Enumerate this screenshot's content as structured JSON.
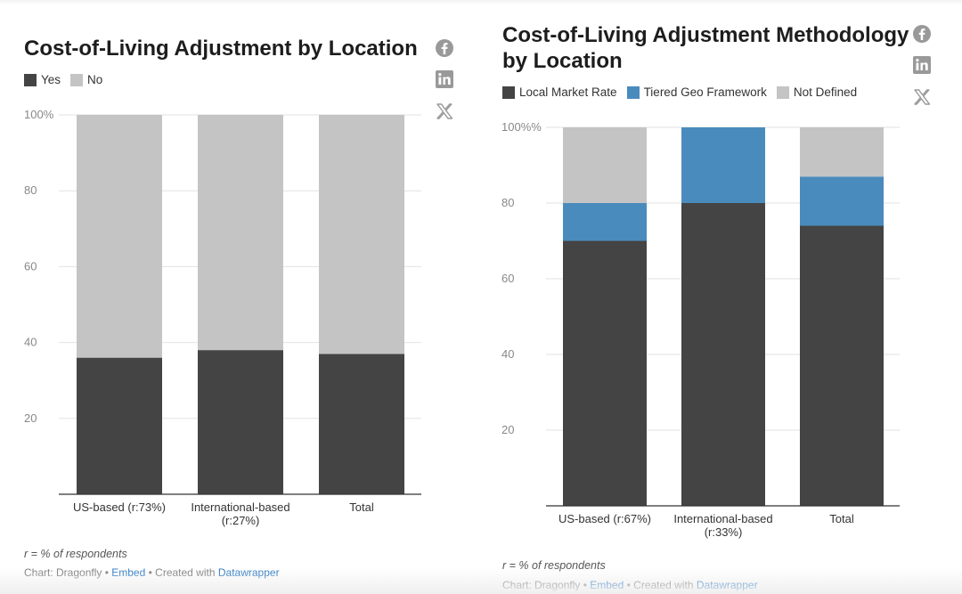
{
  "colors": {
    "dark": "#444444",
    "light": "#c4c4c4",
    "blue": "#4a8bbd",
    "social_icon": "#999999"
  },
  "social_icons": [
    "facebook-icon",
    "linkedin-icon",
    "x-icon"
  ],
  "left": {
    "title": "Cost-of-Living Adjustment by Location",
    "legend": [
      {
        "label": "Yes",
        "color": "#444444"
      },
      {
        "label": "No",
        "color": "#c4c4c4"
      }
    ],
    "note": "r = % of respondents",
    "credit": {
      "prefix": "Chart: Dragonfly •",
      "embed": "Embed",
      "middle": "• Created with",
      "tool": "Datawrapper"
    }
  },
  "right": {
    "title_line1": "Cost-of-Living Adjustment Methodology",
    "title_line2": "by Location",
    "legend": [
      {
        "label": "Local Market Rate",
        "color": "#444444"
      },
      {
        "label": "Tiered Geo Framework",
        "color": "#4a8bbd"
      },
      {
        "label": "Not Defined",
        "color": "#c4c4c4"
      }
    ],
    "note": "r = % of respondents",
    "credit": {
      "prefix": "Chart: Dragonfly •",
      "embed": "Embed",
      "middle": "• Created with",
      "tool": "Datawrapper"
    }
  },
  "chart_data": [
    {
      "type": "bar",
      "stacked": true,
      "title": "Cost-of-Living Adjustment by Location",
      "categories": [
        [
          "US-based (r:73%)"
        ],
        [
          "International-based",
          "(r:27%)"
        ],
        [
          "Total"
        ]
      ],
      "series": [
        {
          "name": "Yes",
          "values": [
            36,
            38,
            37
          ]
        },
        {
          "name": "No",
          "values": [
            64,
            62,
            63
          ]
        }
      ],
      "y_ticks": [
        "20",
        "40",
        "60",
        "80",
        "100%"
      ],
      "ylim": [
        0,
        100
      ],
      "legend_position": "top-left",
      "grid": true
    },
    {
      "type": "bar",
      "stacked": true,
      "title": "Cost-of-Living Adjustment Methodology by Location",
      "categories": [
        [
          "US-based (r:67%)"
        ],
        [
          "International-based",
          "(r:33%)"
        ],
        [
          "Total"
        ]
      ],
      "series": [
        {
          "name": "Local Market Rate",
          "values": [
            70,
            80,
            74
          ]
        },
        {
          "name": "Tiered Geo Framework",
          "values": [
            10,
            20,
            13
          ]
        },
        {
          "name": "Not Defined",
          "values": [
            20,
            0,
            13
          ]
        }
      ],
      "y_ticks": [
        "20",
        "40",
        "60",
        "80",
        "100%%"
      ],
      "ylim": [
        0,
        100
      ],
      "legend_position": "top-left",
      "grid": true
    }
  ]
}
